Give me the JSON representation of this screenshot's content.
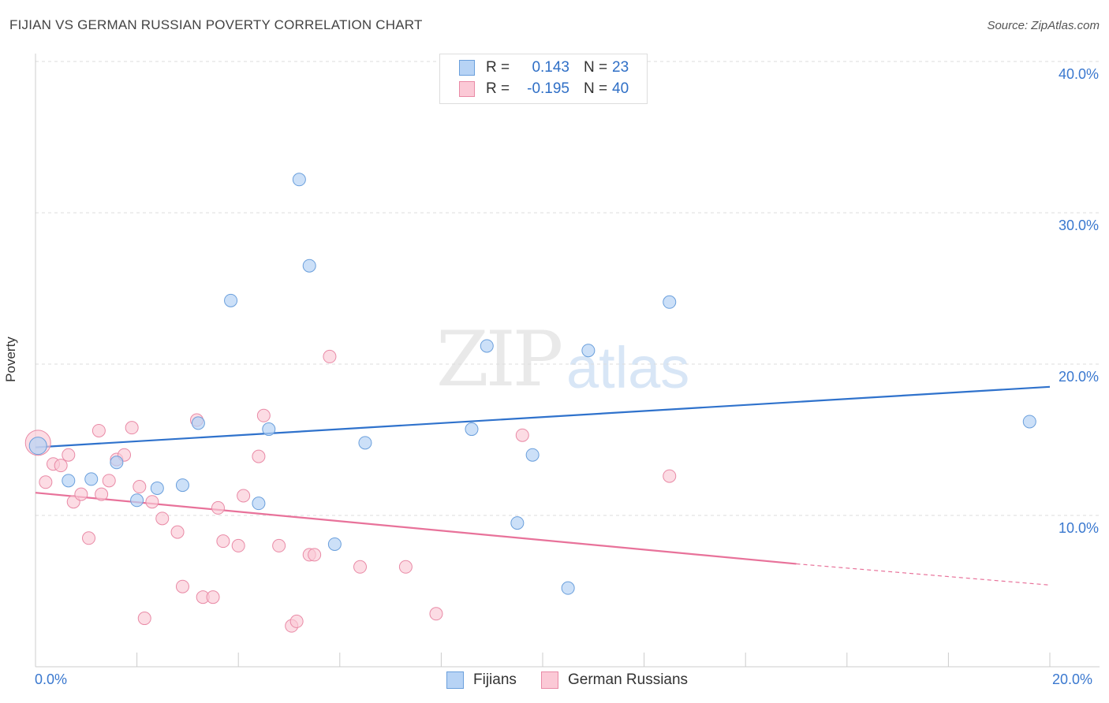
{
  "header": {
    "title": "FIJIAN VS GERMAN RUSSIAN POVERTY CORRELATION CHART",
    "source": "Source: ZipAtlas.com"
  },
  "watermark": {
    "zip": "ZIP",
    "atlas": "atlas"
  },
  "legend": {
    "rows": [
      {
        "r_label": "R =",
        "r_value": "0.143",
        "n_label": "N =",
        "n_value": "23"
      },
      {
        "r_label": "R =",
        "r_value": "-0.195",
        "n_label": "N =",
        "n_value": "40"
      }
    ]
  },
  "bottom_legend": {
    "series1": "Fijians",
    "series2": "German Russians"
  },
  "colors": {
    "fijians_fill": "#b7d3f5",
    "fijians_stroke": "#6a9fdc",
    "fijians_line": "#2f72cc",
    "german_fill": "#fbc9d6",
    "german_stroke": "#e98aa6",
    "german_line": "#e8729a",
    "grid": "#dddddd",
    "axis_label": "#3a78cf"
  },
  "chart_data": {
    "type": "scatter",
    "title": "FIJIAN VS GERMAN RUSSIAN POVERTY CORRELATION CHART",
    "xlabel": "",
    "ylabel": "Poverty",
    "xlim": [
      0,
      20
    ],
    "ylim": [
      0,
      40
    ],
    "x_tick_labels": [
      "0.0%",
      "20.0%"
    ],
    "y_tick_labels": [
      "10.0%",
      "20.0%",
      "30.0%",
      "40.0%"
    ],
    "y_ticks": [
      10,
      20,
      30,
      40
    ],
    "series": [
      {
        "name": "Fijians",
        "R": 0.143,
        "N": 23,
        "trend": {
          "x": [
            0,
            20
          ],
          "y": [
            14.5,
            18.5
          ]
        },
        "points": [
          [
            0.05,
            14.6
          ],
          [
            0.65,
            12.3
          ],
          [
            1.1,
            12.4
          ],
          [
            1.6,
            13.5
          ],
          [
            2.0,
            11.0
          ],
          [
            2.4,
            11.8
          ],
          [
            2.9,
            12.0
          ],
          [
            3.21,
            16.1
          ],
          [
            3.85,
            24.2
          ],
          [
            4.4,
            10.8
          ],
          [
            4.6,
            15.7
          ],
          [
            5.2,
            32.2
          ],
          [
            5.4,
            26.5
          ],
          [
            5.9,
            8.1
          ],
          [
            6.5,
            14.8
          ],
          [
            8.6,
            15.7
          ],
          [
            8.9,
            21.2
          ],
          [
            9.5,
            9.5
          ],
          [
            9.8,
            14.0
          ],
          [
            10.5,
            5.2
          ],
          [
            10.9,
            20.9
          ],
          [
            12.5,
            24.1
          ],
          [
            19.6,
            16.2
          ]
        ]
      },
      {
        "name": "German Russians",
        "R": -0.195,
        "N": 40,
        "trend": {
          "x": [
            0,
            15
          ],
          "y": [
            11.5,
            6.8
          ],
          "dashed_to": [
            20,
            5.4
          ]
        },
        "points": [
          [
            0.05,
            14.8
          ],
          [
            0.2,
            12.2
          ],
          [
            0.35,
            13.4
          ],
          [
            0.5,
            13.3
          ],
          [
            0.65,
            14.0
          ],
          [
            0.75,
            10.9
          ],
          [
            0.9,
            11.4
          ],
          [
            1.05,
            8.5
          ],
          [
            1.25,
            15.6
          ],
          [
            1.3,
            11.4
          ],
          [
            1.45,
            12.3
          ],
          [
            1.6,
            13.7
          ],
          [
            1.75,
            14.0
          ],
          [
            1.9,
            15.8
          ],
          [
            2.05,
            11.9
          ],
          [
            2.15,
            3.2
          ],
          [
            2.3,
            10.9
          ],
          [
            2.5,
            9.8
          ],
          [
            2.8,
            8.9
          ],
          [
            2.9,
            5.3
          ],
          [
            3.18,
            16.3
          ],
          [
            3.3,
            4.6
          ],
          [
            3.5,
            4.6
          ],
          [
            3.6,
            10.5
          ],
          [
            3.7,
            8.3
          ],
          [
            4.0,
            8.0
          ],
          [
            4.1,
            11.3
          ],
          [
            4.4,
            13.9
          ],
          [
            4.5,
            16.6
          ],
          [
            4.8,
            8.0
          ],
          [
            5.05,
            2.7
          ],
          [
            5.15,
            3.0
          ],
          [
            5.4,
            7.4
          ],
          [
            5.5,
            7.4
          ],
          [
            5.8,
            20.5
          ],
          [
            6.4,
            6.6
          ],
          [
            7.3,
            6.6
          ],
          [
            7.9,
            3.5
          ],
          [
            9.6,
            15.3
          ],
          [
            12.5,
            12.6
          ]
        ]
      }
    ]
  }
}
